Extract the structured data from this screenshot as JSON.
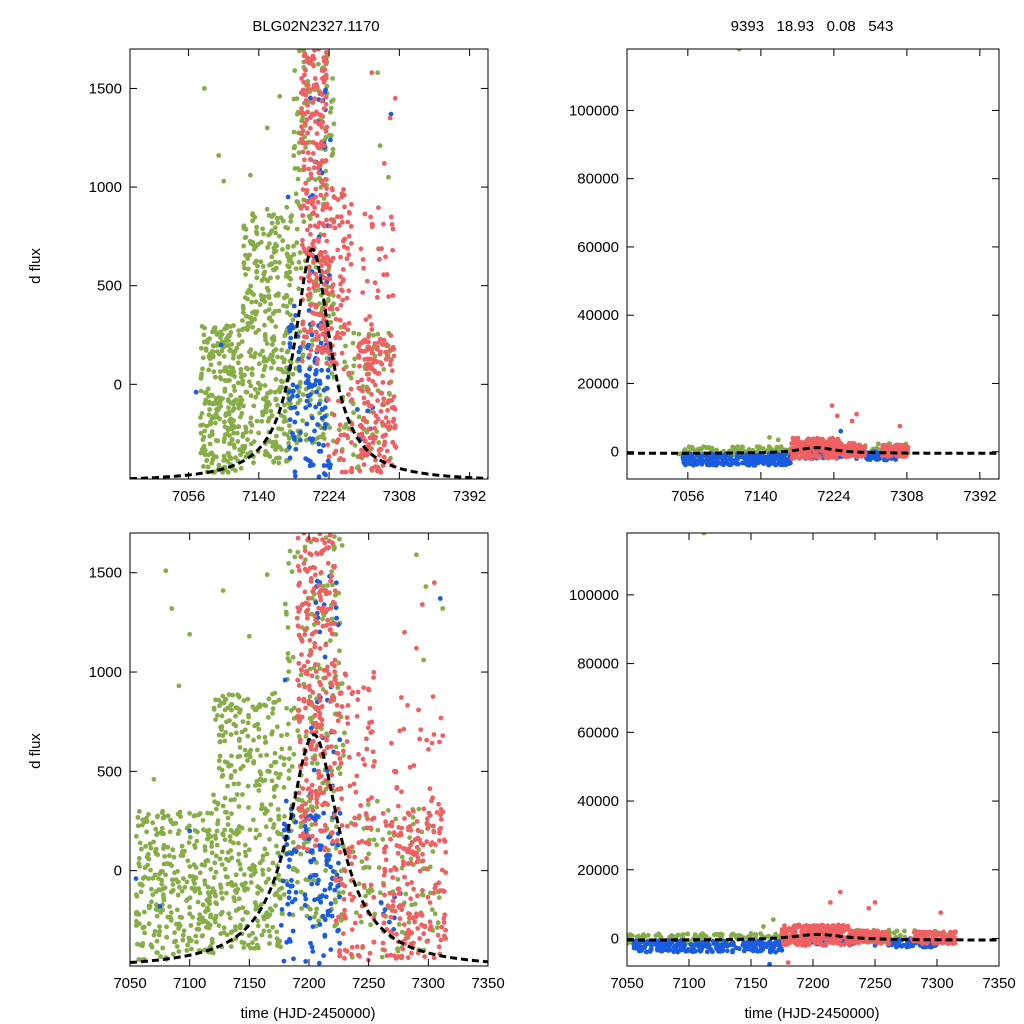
{
  "title_left": "BLG02N2327.1170",
  "title_right": "9393   18.93   0.08   543",
  "ylabel": "d flux",
  "xlabel": "time (HJD-2450000)",
  "colors": {
    "green": "#86ad46",
    "blue": "#1a5ce0",
    "red": "#ee6062",
    "model": "#000000"
  },
  "series_names": [
    "green",
    "blue",
    "red"
  ],
  "chart_data": [
    {
      "id": "top-left",
      "type": "scatter",
      "xlim": [
        6986,
        7414
      ],
      "ylim": [
        -480,
        1700
      ],
      "xticks": [
        7056,
        7140,
        7224,
        7308,
        7392
      ],
      "yticks": [
        0,
        500,
        1000,
        1500
      ],
      "xticklabels": [
        "7056",
        "7140",
        "7224",
        "7308",
        "7392"
      ],
      "yticklabels": [
        "0",
        "500",
        "1000",
        "1500"
      ],
      "xlabel": "",
      "ylabel": "d flux",
      "title": "BLG02N2327.1170",
      "model": {
        "type": "lorentzian",
        "t0": 7204,
        "peak": 1180,
        "width": 26,
        "baseline": -495
      },
      "series": [
        {
          "name": "green",
          "clusters": [
            [
              7070,
              7120,
              -450,
              300,
              260
            ],
            [
              7120,
              7180,
              -400,
              900,
              360
            ],
            [
              7180,
              7230,
              -300,
              1700,
              220
            ],
            [
              7235,
              7300,
              -450,
              300,
              90
            ]
          ],
          "outliers": [
            [
              7075,
              1500
            ],
            [
              7098,
              1030
            ],
            [
              7092,
              1160
            ],
            [
              7130,
              1060
            ],
            [
              7150,
              1300
            ],
            [
              7165,
              1460
            ],
            [
              7282,
              1580
            ],
            [
              7295,
              1050
            ],
            [
              7285,
              1210
            ]
          ]
        },
        {
          "name": "blue",
          "clusters": [
            [
              7176,
              7190,
              -480,
              400,
              40
            ],
            [
              7196,
              7226,
              -480,
              300,
              80
            ],
            [
              7200,
              7226,
              300,
              1500,
              30
            ],
            [
              7255,
              7280,
              -300,
              -100,
              8
            ]
          ],
          "outliers": [
            [
              7065,
              -40
            ],
            [
              7095,
              200
            ],
            [
              7175,
              950
            ],
            [
              7298,
              1370
            ]
          ]
        },
        {
          "name": "red",
          "clusters": [
            [
              7190,
              7222,
              100,
              1700,
              260
            ],
            [
              7222,
              7252,
              -450,
              1000,
              120
            ],
            [
              7258,
              7304,
              -450,
              250,
              170
            ],
            [
              7262,
              7302,
              250,
              900,
              30
            ]
          ],
          "outliers": [
            [
              7290,
              1120
            ],
            [
              7297,
              1350
            ],
            [
              7303,
              1450
            ],
            [
              7275,
              1580
            ],
            [
              7300,
              680
            ]
          ]
        }
      ]
    },
    {
      "id": "top-right",
      "type": "scatter",
      "xlim": [
        6986,
        7414
      ],
      "ylim": [
        -8000,
        118000
      ],
      "xticks": [
        7056,
        7140,
        7224,
        7308,
        7392
      ],
      "yticks": [
        0,
        20000,
        40000,
        60000,
        80000,
        100000
      ],
      "xticklabels": [
        "7056",
        "7140",
        "7224",
        "7308",
        "7392"
      ],
      "yticklabels": [
        "0",
        "20000",
        "40000",
        "60000",
        "80000",
        "100000"
      ],
      "xlabel": "",
      "ylabel": "",
      "title": "9393   18.93   0.08   543",
      "model": {
        "type": "lorentzian",
        "t0": 7204,
        "peak": 1680,
        "width": 26,
        "baseline": -495
      },
      "series": [
        {
          "name": "green",
          "clusters": [
            [
              7045,
              7175,
              -1500,
              1500,
              120
            ],
            [
              7175,
              7310,
              -1200,
              2500,
              90
            ]
          ],
          "outliers": [
            [
              7110,
              1000
            ],
            [
              7160,
              3500
            ],
            [
              7150,
              4200
            ],
            [
              7115,
              118000
            ]
          ]
        },
        {
          "name": "blue",
          "clusters": [
            [
              7050,
              7175,
              -4000,
              -500,
              260
            ],
            [
              7190,
              7235,
              -2000,
              1000,
              40
            ],
            [
              7260,
              7300,
              -2500,
              0,
              60
            ]
          ],
          "outliers": [
            [
              7232,
              6000
            ],
            [
              7250,
              -2000
            ]
          ]
        },
        {
          "name": "red",
          "clusters": [
            [
              7175,
              7230,
              -2000,
              4000,
              220
            ],
            [
              7230,
              7260,
              -1500,
              2500,
              90
            ],
            [
              7280,
              7310,
              -1500,
              2000,
              110
            ]
          ],
          "outliers": [
            [
              7222,
              13500
            ],
            [
              7250,
              11000
            ],
            [
              7245,
              9000
            ],
            [
              7228,
              10500
            ],
            [
              7300,
              7500
            ]
          ]
        }
      ]
    },
    {
      "id": "bottom-left",
      "type": "scatter",
      "xlim": [
        7050,
        7350
      ],
      "ylim": [
        -480,
        1700
      ],
      "xticks": [
        7050,
        7100,
        7150,
        7200,
        7250,
        7300,
        7350
      ],
      "yticks": [
        0,
        500,
        1000,
        1500
      ],
      "xticklabels": [
        "7050",
        "7100",
        "7150",
        "7200",
        "7250",
        "7300",
        "7350"
      ],
      "yticklabels": [
        "0",
        "500",
        "1000",
        "1500"
      ],
      "xlabel": "time (HJD-2450000)",
      "ylabel": "d flux",
      "title": "",
      "model": {
        "type": "lorentzian",
        "t0": 7204,
        "peak": 1180,
        "width": 26,
        "baseline": -495
      },
      "series": [
        {
          "name": "green",
          "clusters": [
            [
              7055,
              7120,
              -450,
              300,
              300
            ],
            [
              7120,
              7180,
              -400,
              900,
              380
            ],
            [
              7180,
              7230,
              -300,
              1700,
              230
            ],
            [
              7235,
              7310,
              -450,
              350,
              100
            ]
          ],
          "outliers": [
            [
              7080,
              1510
            ],
            [
              7085,
              1320
            ],
            [
              7091,
              930
            ],
            [
              7100,
              1190
            ],
            [
              7128,
              1410
            ],
            [
              7150,
              1180
            ],
            [
              7165,
              1490
            ],
            [
              7290,
              1590
            ],
            [
              7298,
              1430
            ],
            [
              7296,
              1060
            ],
            [
              7312,
              1320
            ],
            [
              7070,
              460
            ]
          ]
        },
        {
          "name": "blue",
          "clusters": [
            [
              7176,
              7190,
              -480,
              400,
              40
            ],
            [
              7196,
              7226,
              -480,
              300,
              90
            ],
            [
              7200,
              7226,
              300,
              1500,
              30
            ],
            [
              7255,
              7280,
              -300,
              -100,
              8
            ]
          ],
          "outliers": [
            [
              7055,
              -40
            ],
            [
              7075,
              -180
            ],
            [
              7100,
              200
            ],
            [
              7180,
              960
            ],
            [
              7310,
              1370
            ]
          ]
        },
        {
          "name": "red",
          "clusters": [
            [
              7190,
              7222,
              100,
              1700,
              270
            ],
            [
              7222,
              7255,
              -450,
              1000,
              130
            ],
            [
              7262,
              7315,
              -450,
              300,
              190
            ],
            [
              7265,
              7312,
              300,
              900,
              30
            ]
          ],
          "outliers": [
            [
              7290,
              1120
            ],
            [
              7295,
              1340
            ],
            [
              7305,
              1450
            ],
            [
              7280,
              1200
            ],
            [
              7312,
              680
            ]
          ]
        }
      ]
    },
    {
      "id": "bottom-right",
      "type": "scatter",
      "xlim": [
        7050,
        7350
      ],
      "ylim": [
        -8000,
        118000
      ],
      "xticks": [
        7050,
        7100,
        7150,
        7200,
        7250,
        7300,
        7350
      ],
      "yticks": [
        0,
        20000,
        40000,
        60000,
        80000,
        100000
      ],
      "xticklabels": [
        "7050",
        "7100",
        "7150",
        "7200",
        "7250",
        "7300",
        "7350"
      ],
      "yticklabels": [
        "0",
        "20000",
        "40000",
        "60000",
        "80000",
        "100000"
      ],
      "xlabel": "time (HJD-2450000)",
      "ylabel": "",
      "title": "",
      "model": {
        "type": "lorentzian",
        "t0": 7204,
        "peak": 1680,
        "width": 26,
        "baseline": -495
      },
      "series": [
        {
          "name": "green",
          "clusters": [
            [
              7050,
              7175,
              -1500,
              1500,
              130
            ],
            [
              7175,
              7310,
              -1200,
              2500,
              100
            ]
          ],
          "outliers": [
            [
              7110,
              1000
            ],
            [
              7160,
              3500
            ],
            [
              7168,
              5500
            ],
            [
              7112,
              118000
            ]
          ]
        },
        {
          "name": "blue",
          "clusters": [
            [
              7055,
              7175,
              -4000,
              -500,
              260
            ],
            [
              7190,
              7235,
              -2000,
              1000,
              40
            ],
            [
              7260,
              7300,
              -2500,
              0,
              60
            ]
          ],
          "outliers": [
            [
              7165,
              -7500
            ],
            [
              7250,
              -2000
            ]
          ]
        },
        {
          "name": "red",
          "clusters": [
            [
              7175,
              7230,
              -2000,
              4000,
              230
            ],
            [
              7230,
              7262,
              -1500,
              2500,
              90
            ],
            [
              7280,
              7315,
              -1500,
              2000,
              110
            ]
          ],
          "outliers": [
            [
              7222,
              13500
            ],
            [
              7250,
              10500
            ],
            [
              7245,
              8800
            ],
            [
              7214,
              10500
            ],
            [
              7303,
              7500
            ],
            [
              7180,
              -7000
            ]
          ]
        }
      ]
    }
  ]
}
